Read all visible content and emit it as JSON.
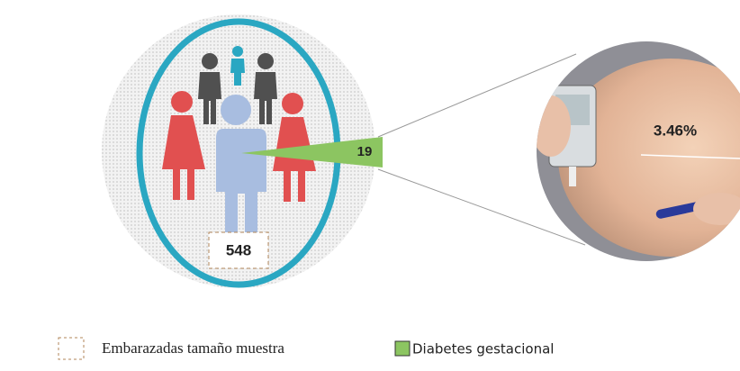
{
  "infographic": {
    "sample_size": "548",
    "cases": "19",
    "percentage": "3.46%"
  },
  "legend": {
    "items": [
      {
        "label": "Embarazadas tamaño muestra"
      },
      {
        "label": "Diabetes gestacional"
      }
    ]
  }
}
